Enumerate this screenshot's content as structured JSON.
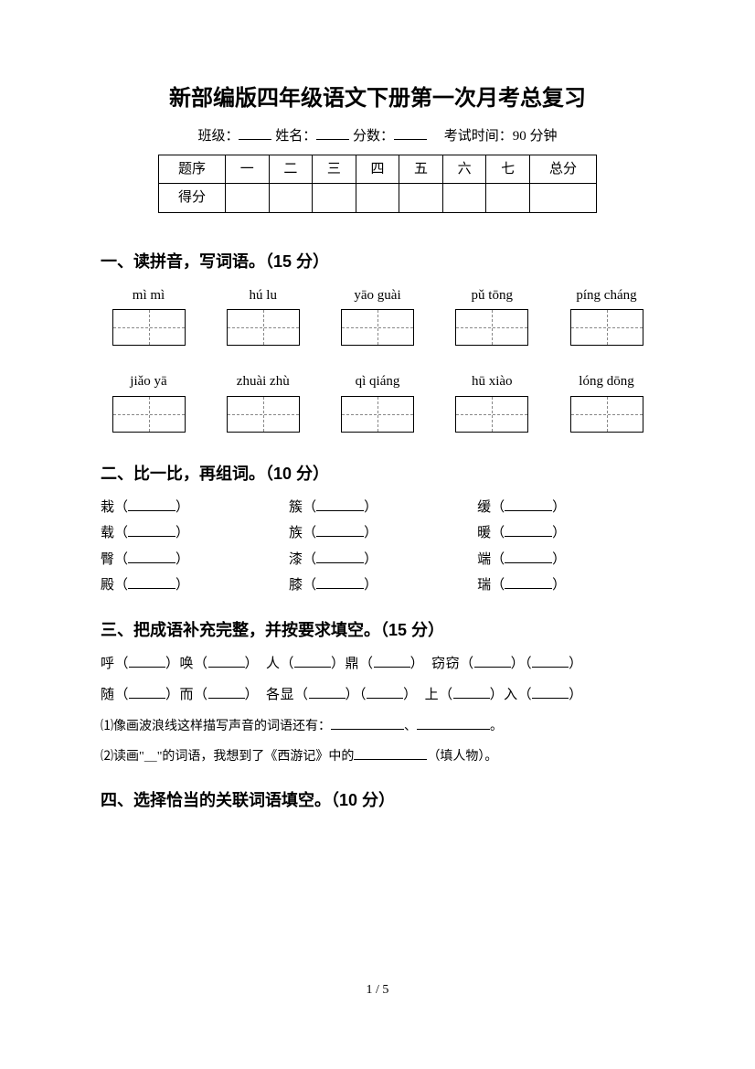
{
  "title": "新部编版四年级语文下册第一次月考总复习",
  "subheader": {
    "class_label": "班级：",
    "name_label": "姓名：",
    "score_label": "分数：",
    "time_label": "考试时间：90 分钟"
  },
  "score_table": {
    "row1": [
      "题序",
      "一",
      "二",
      "三",
      "四",
      "五",
      "六",
      "七",
      "总分"
    ],
    "row2_label": "得分"
  },
  "sections": {
    "s1": {
      "title": "一、读拼音，写词语。（15 分）",
      "row1": [
        "mì  mì",
        "hú lu",
        "yāo guài",
        "pǔ tōng",
        "píng cháng"
      ],
      "row2": [
        "jiǎo yā",
        "zhuài zhù",
        "qì qiáng",
        "hū xiào",
        "lóng dōng"
      ]
    },
    "s2": {
      "title": "二、比一比，再组词。（10 分）",
      "col1": [
        "栽",
        "载",
        "臀",
        "殿"
      ],
      "col2": [
        "簇",
        "族",
        "漆",
        "膝"
      ],
      "col3": [
        "缓",
        "暖",
        "端",
        "瑞"
      ]
    },
    "s3": {
      "title": "三、把成语补充完整，并按要求填空。（15 分）",
      "line1_parts": [
        "呼（",
        "）唤（",
        "）　人（",
        "）鼎（",
        "）　窃窃（",
        "）（",
        "）"
      ],
      "line2_parts": [
        "随（",
        "）而（",
        "）　各显（",
        "）（",
        "）　上（",
        "）入（",
        "）"
      ],
      "q1": "⑴像画波浪线这样描写声音的词语还有：",
      "q1_tail": "、",
      "q1_end": "。",
      "q2": "⑵读画\"＿\"的词语，我想到了《西游记》中的",
      "q2_tail": "（填人物）。"
    },
    "s4": {
      "title": "四、选择恰当的关联词语填空。（10 分）"
    }
  },
  "page_num": "1 / 5"
}
